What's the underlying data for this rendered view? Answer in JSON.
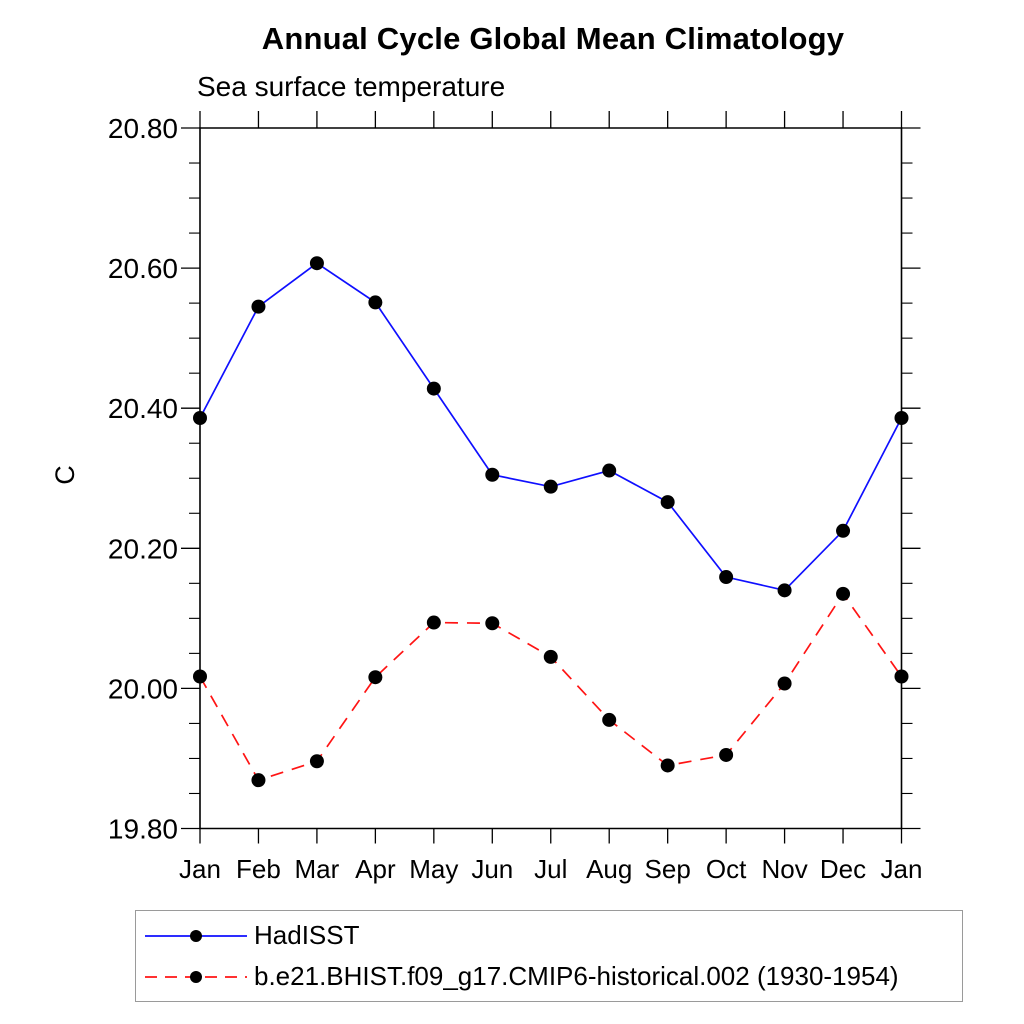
{
  "page": {
    "background": "#ffffff"
  },
  "chart_data": {
    "type": "line",
    "title": "Annual Cycle Global Mean Climatology",
    "subtitle": "Sea surface temperature",
    "xlabel": "",
    "ylabel": "C",
    "x_categories": [
      "Jan",
      "Feb",
      "Mar",
      "Apr",
      "May",
      "Jun",
      "Jul",
      "Aug",
      "Sep",
      "Oct",
      "Nov",
      "Dec",
      "Jan"
    ],
    "ylim": [
      19.8,
      20.8
    ],
    "ytick_labels": [
      "19.80",
      "20.00",
      "20.20",
      "20.40",
      "20.60",
      "20.80"
    ],
    "ytick_major_step": 0.2,
    "ytick_minor_step": 0.05,
    "grid": false,
    "legend_position": "bottom-left",
    "axis_color": "#000000",
    "marker_color": "#000000",
    "series": [
      {
        "name": "HadISST",
        "line_color": "#0f0fff",
        "line_style": "solid",
        "marker": "circle",
        "values": [
          20.386,
          20.545,
          20.607,
          20.551,
          20.428,
          20.305,
          20.288,
          20.311,
          20.266,
          20.159,
          20.14,
          20.225,
          20.386
        ]
      },
      {
        "name": "b.e21.BHIST.f09_g17.CMIP6-historical.002 (1930-1954)",
        "line_color": "#ff1414",
        "line_style": "dashed",
        "marker": "circle",
        "values": [
          20.017,
          19.869,
          19.896,
          20.016,
          20.094,
          20.093,
          20.045,
          19.955,
          19.89,
          19.905,
          20.007,
          20.135,
          20.017
        ]
      }
    ]
  }
}
